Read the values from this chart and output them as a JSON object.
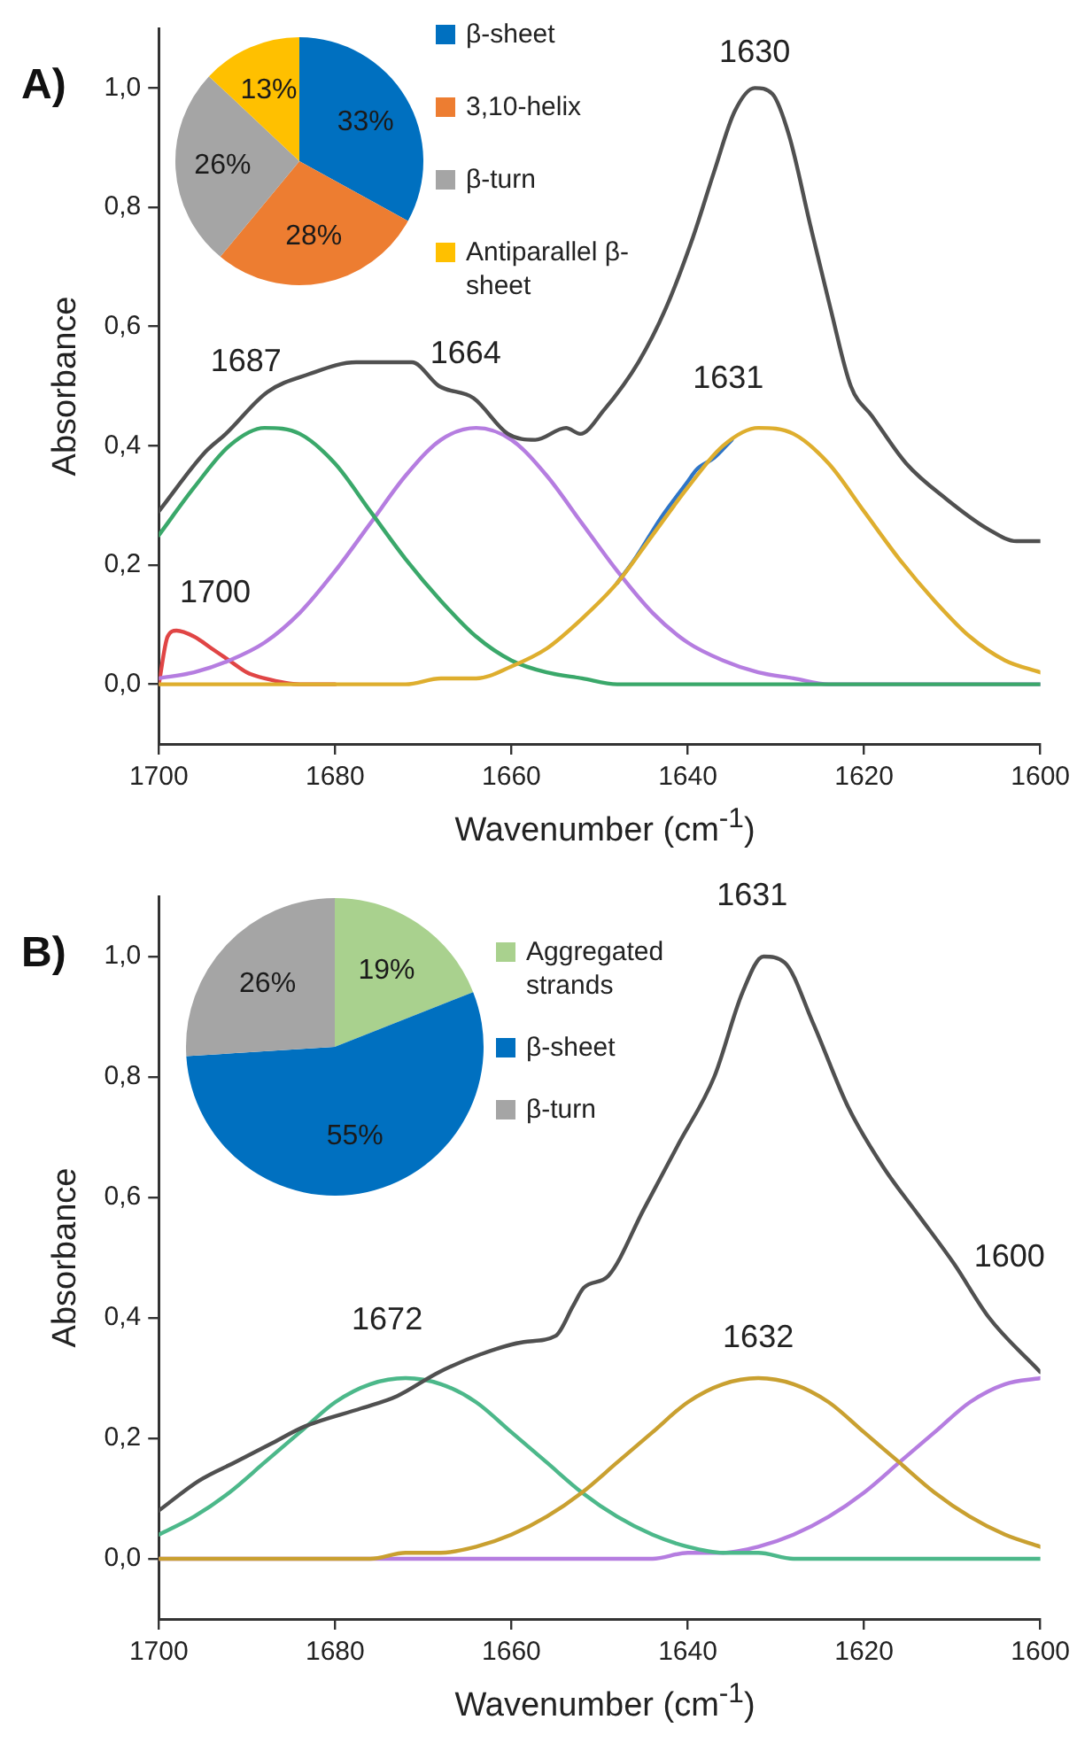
{
  "chart_data": [
    {
      "type": "line",
      "title": "A)",
      "xlabel": "Wavenumber (cm$^{-1}$)",
      "ylabel": "Absorbance",
      "xlim": [
        1700,
        1600
      ],
      "xticks": [
        1700,
        1680,
        1660,
        1640,
        1620,
        1600
      ],
      "ylim": [
        -0.1,
        1.1
      ],
      "yticks": [
        {
          "value": 0,
          "label": "0,0"
        },
        {
          "value": 0.2,
          "label": "0,2"
        },
        {
          "value": 0.4,
          "label": "0,4"
        },
        {
          "value": 0.6,
          "label": "0,6"
        },
        {
          "value": 0.8,
          "label": "0,8"
        },
        {
          "value": 1,
          "label": "1,0"
        }
      ],
      "grid": false,
      "legend": false,
      "marker": "none",
      "line_style": "solid",
      "series": [
        {
          "color": "#505050",
          "x": [
            1700,
            1694.7,
            1692.4,
            1687.7,
            1683,
            1677.6,
            1674.4,
            1671.3,
            1668.2,
            1664.3,
            1660.4,
            1657.3,
            1653.8,
            1652.2,
            1649.5,
            1645.6,
            1642.5,
            1639.4,
            1637,
            1634.7,
            1632.4,
            1630.4,
            1628.5,
            1626.1,
            1623.8,
            1621.5,
            1619.1,
            1615.2,
            1610.6,
            1605.9,
            1602.7,
            1600
          ],
          "values": [
            0.29,
            0.39,
            0.42,
            0.49,
            0.52,
            0.54,
            0.54,
            0.54,
            0.5,
            0.48,
            0.42,
            0.41,
            0.43,
            0.42,
            0.46,
            0.54,
            0.63,
            0.75,
            0.86,
            0.96,
            1.0,
            0.99,
            0.92,
            0.77,
            0.63,
            0.5,
            0.45,
            0.37,
            0.31,
            0.26,
            0.24,
            0.24
          ]
        },
        {
          "color": "#deae2e",
          "x": [
            1700,
            1676,
            1672,
            1668,
            1664,
            1660,
            1656,
            1652,
            1648,
            1644,
            1640,
            1636,
            1632,
            1628,
            1624,
            1620,
            1616,
            1612,
            1608,
            1604,
            1600
          ],
          "values": [
            0,
            0,
            0,
            0.01,
            0.01,
            0.03,
            0.06,
            0.11,
            0.17,
            0.25,
            0.33,
            0.4,
            0.43,
            0.42,
            0.37,
            0.29,
            0.21,
            0.14,
            0.08,
            0.04,
            0.02
          ]
        },
        {
          "color": "#2e75c8",
          "x": [
            1648,
            1646,
            1643,
            1640,
            1639,
            1637,
            1635
          ],
          "values": [
            0.17,
            0.21,
            0.28,
            0.34,
            0.36,
            0.38,
            0.41
          ]
        },
        {
          "color": "#3aa86a",
          "x": [
            1700,
            1696,
            1692,
            1688,
            1684,
            1680,
            1676,
            1672,
            1668,
            1664,
            1660,
            1656,
            1652,
            1648,
            1644,
            1640,
            1620,
            1600
          ],
          "values": [
            0.25,
            0.33,
            0.4,
            0.43,
            0.42,
            0.37,
            0.29,
            0.21,
            0.14,
            0.08,
            0.04,
            0.02,
            0.01,
            0,
            0,
            0,
            0,
            0
          ]
        },
        {
          "color": "#b57de0",
          "x": [
            1700,
            1696,
            1692,
            1688,
            1684,
            1680,
            1676,
            1672,
            1668,
            1664,
            1660,
            1656,
            1652,
            1648,
            1644,
            1640,
            1636,
            1632,
            1628,
            1624,
            1600
          ],
          "values": [
            0.01,
            0.02,
            0.04,
            0.07,
            0.12,
            0.19,
            0.27,
            0.35,
            0.41,
            0.43,
            0.41,
            0.35,
            0.27,
            0.19,
            0.12,
            0.07,
            0.04,
            0.02,
            0.01,
            0,
            0
          ]
        },
        {
          "color": "#e04545",
          "x": [
            1700,
            1699,
            1698,
            1696,
            1694,
            1692,
            1690,
            1688,
            1684,
            1680
          ],
          "values": [
            0,
            0.08,
            0.09,
            0.08,
            0.06,
            0.04,
            0.02,
            0.01,
            0,
            0
          ]
        }
      ],
      "annotations": [
        "1630",
        "1687",
        "1664",
        "1631",
        "1700"
      ]
    },
    {
      "type": "pie",
      "categories": [
        "β-sheet",
        "3,10-helix",
        "β-turn",
        "Antiparallel β-sheet"
      ],
      "values": [
        33,
        28,
        26,
        13
      ],
      "colors": [
        "#0070c0",
        "#ed7d31",
        "#a5a5a5",
        "#ffc000"
      ],
      "value_labels": [
        "33%",
        "28%",
        "26%",
        "13%"
      ],
      "legend": "right"
    },
    {
      "type": "line",
      "title": "B)",
      "xlabel": "Wavenumber (cm$^{-1}$)",
      "ylabel": "Absorbance",
      "xlim": [
        1700,
        1600
      ],
      "xticks": [
        1700,
        1680,
        1660,
        1640,
        1620,
        1600
      ],
      "ylim": [
        -0.1,
        1.1
      ],
      "yticks": [
        {
          "value": 0,
          "label": "0,0"
        },
        {
          "value": 0.2,
          "label": "0,2"
        },
        {
          "value": 0.4,
          "label": "0,4"
        },
        {
          "value": 0.6,
          "label": "0,6"
        },
        {
          "value": 0.8,
          "label": "0,8"
        },
        {
          "value": 1,
          "label": "1,0"
        }
      ],
      "grid": false,
      "legend": false,
      "marker": "none",
      "line_style": "solid",
      "series": [
        {
          "color": "#505050",
          "x": [
            1700,
            1695.4,
            1691.4,
            1687.4,
            1683.4,
            1677,
            1673,
            1668.2,
            1663.4,
            1658.6,
            1655,
            1653,
            1651.8,
            1649,
            1645,
            1641,
            1637,
            1633.8,
            1631.4,
            1629,
            1625.8,
            1621.8,
            1617.8,
            1613.8,
            1609.8,
            1605.8,
            1600
          ],
          "values": [
            0.08,
            0.13,
            0.16,
            0.19,
            0.22,
            0.25,
            0.27,
            0.31,
            0.34,
            0.36,
            0.37,
            0.42,
            0.45,
            0.47,
            0.58,
            0.69,
            0.8,
            0.94,
            1.0,
            0.99,
            0.89,
            0.75,
            0.65,
            0.57,
            0.49,
            0.4,
            0.31
          ]
        },
        {
          "color": "#c9a030",
          "x": [
            1700,
            1680,
            1676,
            1672,
            1668,
            1664,
            1660,
            1656,
            1652,
            1648,
            1644,
            1640,
            1636,
            1632,
            1628,
            1624,
            1620,
            1616,
            1612,
            1608,
            1604,
            1600
          ],
          "values": [
            0,
            0,
            0,
            0.01,
            0.01,
            0.02,
            0.04,
            0.07,
            0.11,
            0.16,
            0.21,
            0.26,
            0.29,
            0.3,
            0.29,
            0.26,
            0.21,
            0.16,
            0.11,
            0.07,
            0.04,
            0.02
          ]
        },
        {
          "color": "#4cb88a",
          "x": [
            1700,
            1696,
            1692,
            1688,
            1684,
            1680,
            1676,
            1672,
            1668,
            1664,
            1660,
            1656,
            1652,
            1648,
            1644,
            1640,
            1636,
            1632,
            1628,
            1620,
            1600
          ],
          "values": [
            0.04,
            0.07,
            0.11,
            0.16,
            0.21,
            0.26,
            0.29,
            0.3,
            0.29,
            0.26,
            0.21,
            0.16,
            0.11,
            0.07,
            0.04,
            0.02,
            0.01,
            0.01,
            0,
            0,
            0
          ]
        },
        {
          "color": "#b57de0",
          "x": [
            1700,
            1650,
            1644,
            1640,
            1636,
            1632,
            1628,
            1624,
            1620,
            1616,
            1612,
            1608,
            1604,
            1600
          ],
          "values": [
            0,
            0,
            0,
            0.01,
            0.01,
            0.02,
            0.04,
            0.07,
            0.11,
            0.16,
            0.21,
            0.26,
            0.29,
            0.3
          ]
        }
      ],
      "annotations": [
        "1631",
        "1672",
        "1632",
        "1600"
      ]
    },
    {
      "type": "pie",
      "categories": [
        "Aggregated strands",
        "β-sheet",
        "β-turn"
      ],
      "values": [
        19,
        55,
        26
      ],
      "colors": [
        "#a9d18e",
        "#0070c0",
        "#a5a5a5"
      ],
      "value_labels": [
        "19%",
        "55%",
        "26%"
      ],
      "legend": "right"
    }
  ]
}
